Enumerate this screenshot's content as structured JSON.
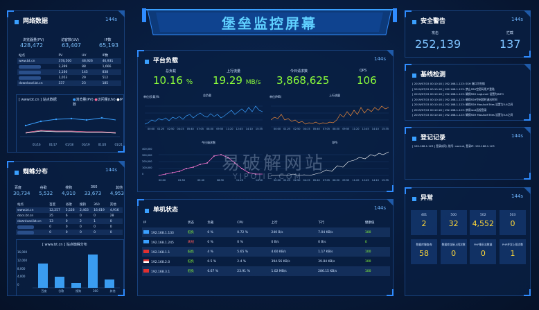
{
  "header": {
    "title": "堡垒监控屏幕"
  },
  "watermark": {
    "cn": "易破解网站",
    "en": "YIPOJIE.COM"
  },
  "network": {
    "title": "网络数据",
    "interval": "144s",
    "pv_label": "浏览器量(PV)",
    "pv": "428,472",
    "uv_label": "访客数(UV)",
    "uv": "63,407",
    "ip_label": "IP数",
    "ip": "65,193",
    "table_headers": [
      "站点",
      "PV",
      "UV",
      "IP数"
    ],
    "rows": [
      [
        "www.bt.cn",
        "378,500",
        "48,926",
        "46,931"
      ],
      [
        "",
        "2,399",
        "88",
        "1,666"
      ],
      [
        "",
        "1,160",
        "145",
        "838"
      ],
      [
        "",
        "1,053",
        "29",
        "512"
      ],
      [
        "download.bt.cn",
        "337",
        "23",
        "185"
      ]
    ],
    "chart_title": "[ www.bt.cn ] 站点数据",
    "legend": [
      "浏览量(PV)",
      "访问量(UV)",
      "IP数"
    ],
    "x_labels": [
      "01/16",
      "01/17",
      "01/18",
      "01/19",
      "01/20",
      "01/21"
    ]
  },
  "spider": {
    "title": "蜘蛛分布",
    "interval": "144s",
    "labels": [
      "百度",
      "谷歌",
      "搜狗",
      "360",
      "其他"
    ],
    "values": [
      "30,734",
      "5,532",
      "4,910",
      "33,673",
      "4,953"
    ],
    "table_headers": [
      "站点",
      "百度",
      "谷歌",
      "搜狗",
      "360",
      "其他"
    ],
    "rows": [
      [
        "www.bt.cn",
        "12,257",
        "5,526",
        "2,463",
        "16,619",
        "4,916"
      ],
      [
        "docs.bt.cn",
        "25",
        "6",
        "0",
        "0",
        "28"
      ],
      [
        "download.bt.cn",
        "13",
        "0",
        "2",
        "1",
        "0"
      ],
      [
        "",
        "0",
        "0",
        "0",
        "0",
        "0"
      ],
      [
        "",
        "0",
        "0",
        "0",
        "0",
        "0"
      ]
    ],
    "chart_title": "[ www.bt.cn ] 站点蜘蛛分布",
    "y_ticks": [
      "16,000",
      "12,000",
      "8,000",
      "4,000",
      "0"
    ]
  },
  "platform": {
    "title": "平台负载",
    "interval": "144s",
    "stats": [
      {
        "label": "总负载",
        "value": "10.16",
        "unit": "%"
      },
      {
        "label": "上行流量",
        "value": "19.29",
        "unit": "MB/s"
      },
      {
        "label": "今日请求数",
        "value": "3,868,625",
        "unit": ""
      },
      {
        "label": "QPS",
        "value": "106",
        "unit": ""
      }
    ],
    "charts": [
      {
        "title": "总负载",
        "unit": "单位(负载)%"
      },
      {
        "title": "上行流量",
        "unit": "单位(MB)"
      },
      {
        "title": "今日请求数",
        "unit": ""
      },
      {
        "title": "QPS",
        "unit": ""
      }
    ],
    "time_labels": [
      "00:00",
      "01:25",
      "02:50",
      "04:15",
      "05:40",
      "07:05",
      "08:30",
      "09:55",
      "11:20",
      "12:45",
      "14:10",
      "15:35"
    ],
    "req_y": [
      "400,000",
      "300,000",
      "200,000",
      "100,000",
      "0"
    ]
  },
  "machines": {
    "title": "单机状态",
    "interval": "144s",
    "headers": [
      "IP",
      "状态",
      "负载",
      "CPU",
      "上行",
      "下行",
      "健康值"
    ],
    "rows": [
      {
        "ip": "192.168.1.133",
        "status": "低负",
        "load": "0 %",
        "cpu": "0.72 %",
        "up": "240 B/s",
        "down": "7.04 KB/s",
        "health": "100",
        "flag": "blue"
      },
      {
        "ip": "192.168.1.245",
        "status": "离线",
        "load": "0 %",
        "cpu": "0 %",
        "up": "0 B/s",
        "down": "0 B/s",
        "health": "0",
        "flag": "blue"
      },
      {
        "ip": "192.168.1.1",
        "status": "低负",
        "load": "4 %",
        "cpu": "5.65 %",
        "up": "4.60 KB/s",
        "down": "1.17 KB/s",
        "health": "100",
        "flag": "red"
      },
      {
        "ip": "192.168.2.0",
        "status": "低负",
        "load": "0.5 %",
        "cpu": "2.4 %",
        "up": "394.56 KB/s",
        "down": "39.84 KB/s",
        "health": "100",
        "flag": "mixed"
      },
      {
        "ip": "192.168.3.1",
        "status": "低负",
        "load": "6.67 %",
        "cpu": "23.91 %",
        "up": "1.02 MB/s",
        "down": "286.15 KB/s",
        "health": "100",
        "flag": "red"
      }
    ]
  },
  "security": {
    "title": "安全警告",
    "interval": "144s",
    "attack_label": "攻击",
    "attack": "252,139",
    "block_label": "拦截",
    "block": "137"
  },
  "baseline": {
    "title": "基线检测",
    "interval": "144s",
    "lines": [
      "[ 2019/07/15 00:10:18 ]   192.168.1.123: SSH 端口可扫描",
      "[ 2019/07/15 00:10:18 ]   192.168.1.123: 禁止SSH空密码用户登陆",
      "[ 2019/07/15 00:10:18 ]   192.168.1.123: 确保SSH LogLevel 设置为INFO",
      "[ 2019/07/15 00:10:18 ]   192.168.1.123: 确保SSH空闲超时退出时间",
      "[ 2019/07/15 00:10:18 ]   192.168.1.123: 确保SSH MaxAuthTries 设置为3-6之间",
      "[ 2019/07/15 00:10:18 ]   192.168.1.123: 禁用root远程登录",
      "[ 2019/07/15 00:10:18 ]   192.168.1.123: 确保SSH MaxAuthTries 设置为3-6之间"
    ]
  },
  "login": {
    "title": "登记记录",
    "interval": "144s",
    "line": "[ 192.168.1.123 ]   登录成功,  账号: useruk,  登录IP: 192.168.1.123"
  },
  "errors": {
    "title": "异常",
    "interval": "144s",
    "row1": [
      {
        "label": "401",
        "value": "2"
      },
      {
        "label": "500",
        "value": "32"
      },
      {
        "label": "502",
        "value": "4,552"
      },
      {
        "label": "503",
        "value": "0"
      }
    ],
    "row2": [
      {
        "label": "数据库慢查询",
        "value": "58"
      },
      {
        "label": "数据库连接上限次数",
        "value": "0"
      },
      {
        "label": "PHP慢日志数量",
        "value": "0"
      },
      {
        "label": "PHP并发上限次数",
        "value": "1"
      }
    ]
  }
}
